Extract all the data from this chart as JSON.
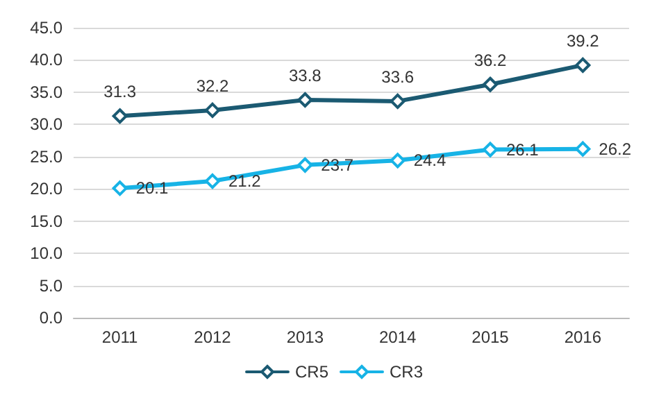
{
  "chart_data": {
    "type": "line",
    "categories": [
      "2011",
      "2012",
      "2013",
      "2014",
      "2015",
      "2016"
    ],
    "series": [
      {
        "name": "CR5",
        "color": "#1b5a72",
        "values": [
          31.3,
          32.2,
          33.8,
          33.6,
          36.2,
          39.2
        ]
      },
      {
        "name": "CR3",
        "color": "#17b3e6",
        "values": [
          20.1,
          21.2,
          23.7,
          24.4,
          26.1,
          26.2
        ]
      }
    ],
    "ylim": [
      0,
      45
    ],
    "yticks": [
      {
        "value": 0,
        "label": "0.0"
      },
      {
        "value": 5,
        "label": "5.0"
      },
      {
        "value": 10,
        "label": "10.0"
      },
      {
        "value": 15,
        "label": "15.0"
      },
      {
        "value": 20,
        "label": "20.0"
      },
      {
        "value": 25,
        "label": "25.0"
      },
      {
        "value": 30,
        "label": "30.0"
      },
      {
        "value": 35,
        "label": "35.0"
      },
      {
        "value": 40,
        "label": "40.0"
      },
      {
        "value": 45,
        "label": "45.0"
      }
    ],
    "grid": "y",
    "legend": "bottom",
    "marker": "diamond",
    "line_style": "solid",
    "data_labels": true
  }
}
